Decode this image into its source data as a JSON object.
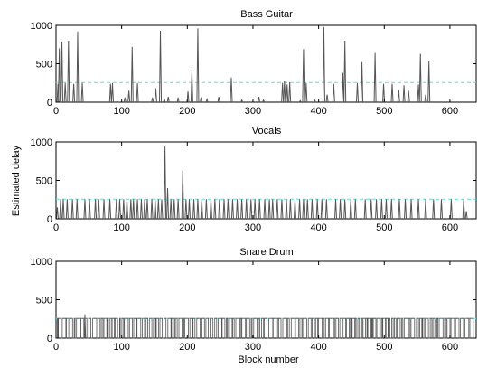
{
  "figure": {
    "ylabel": "Estimated delay",
    "xlabel": "Block number"
  },
  "chart_data": [
    {
      "type": "line",
      "title": "Bass Guitar",
      "xlim": [
        0,
        640
      ],
      "ylim": [
        0,
        1000
      ],
      "x_ticks": [
        0,
        100,
        200,
        300,
        400,
        500,
        600
      ],
      "y_ticks": [
        0,
        500,
        1000
      ],
      "reference_level": 256,
      "grid": false,
      "series_color": "#555555",
      "reference_color": "#66dddd",
      "spikes": [
        [
          3,
          240
        ],
        [
          5,
          700
        ],
        [
          9,
          790
        ],
        [
          14,
          250
        ],
        [
          19,
          800
        ],
        [
          27,
          240
        ],
        [
          33,
          920
        ],
        [
          40,
          250
        ],
        [
          83,
          240
        ],
        [
          86,
          250
        ],
        [
          105,
          60
        ],
        [
          111,
          150
        ],
        [
          116,
          720
        ],
        [
          124,
          250
        ],
        [
          147,
          60
        ],
        [
          152,
          180
        ],
        [
          159,
          930
        ],
        [
          165,
          40
        ],
        [
          171,
          70
        ],
        [
          186,
          60
        ],
        [
          201,
          140
        ],
        [
          207,
          400
        ],
        [
          216,
          960
        ],
        [
          221,
          60
        ],
        [
          230,
          40
        ],
        [
          248,
          70
        ],
        [
          267,
          320
        ],
        [
          283,
          30
        ],
        [
          309,
          70
        ],
        [
          316,
          30
        ],
        [
          345,
          250
        ],
        [
          348,
          270
        ],
        [
          352,
          230
        ],
        [
          356,
          260
        ],
        [
          372,
          20
        ],
        [
          377,
          690
        ],
        [
          381,
          250
        ],
        [
          394,
          30
        ],
        [
          408,
          980
        ],
        [
          413,
          100
        ],
        [
          423,
          240
        ],
        [
          437,
          380
        ],
        [
          440,
          800
        ],
        [
          459,
          250
        ],
        [
          466,
          520
        ],
        [
          486,
          640
        ],
        [
          499,
          240
        ],
        [
          512,
          240
        ],
        [
          522,
          160
        ],
        [
          530,
          220
        ],
        [
          537,
          150
        ],
        [
          552,
          230
        ],
        [
          555,
          630
        ],
        [
          563,
          100
        ],
        [
          568,
          530
        ]
      ]
    },
    {
      "type": "line",
      "title": "Vocals",
      "xlim": [
        0,
        640
      ],
      "ylim": [
        0,
        1000
      ],
      "x_ticks": [
        0,
        100,
        200,
        300,
        400,
        500,
        600
      ],
      "y_ticks": [
        0,
        500,
        1000
      ],
      "reference_level": 256,
      "grid": false,
      "series_color": "#555555",
      "reference_color": "#66dddd",
      "spikes": [
        [
          2,
          150
        ],
        [
          7,
          256
        ],
        [
          11,
          256
        ],
        [
          17,
          256
        ],
        [
          25,
          256
        ],
        [
          32,
          256
        ],
        [
          44,
          256
        ],
        [
          51,
          256
        ],
        [
          60,
          256
        ],
        [
          65,
          256
        ],
        [
          73,
          256
        ],
        [
          82,
          256
        ],
        [
          92,
          256
        ],
        [
          97,
          256
        ],
        [
          103,
          256
        ],
        [
          108,
          256
        ],
        [
          114,
          256
        ],
        [
          118,
          256
        ],
        [
          124,
          256
        ],
        [
          130,
          256
        ],
        [
          135,
          256
        ],
        [
          139,
          256
        ],
        [
          146,
          256
        ],
        [
          151,
          256
        ],
        [
          156,
          256
        ],
        [
          161,
          256
        ],
        [
          166,
          940
        ],
        [
          170,
          400
        ],
        [
          175,
          256
        ],
        [
          180,
          256
        ],
        [
          186,
          256
        ],
        [
          193,
          630
        ],
        [
          198,
          256
        ],
        [
          203,
          256
        ],
        [
          210,
          256
        ],
        [
          216,
          256
        ],
        [
          222,
          256
        ],
        [
          229,
          256
        ],
        [
          236,
          256
        ],
        [
          242,
          256
        ],
        [
          249,
          256
        ],
        [
          256,
          256
        ],
        [
          262,
          256
        ],
        [
          269,
          256
        ],
        [
          276,
          256
        ],
        [
          283,
          256
        ],
        [
          290,
          256
        ],
        [
          297,
          256
        ],
        [
          303,
          256
        ],
        [
          310,
          256
        ],
        [
          318,
          256
        ],
        [
          325,
          256
        ],
        [
          330,
          256
        ],
        [
          337,
          256
        ],
        [
          344,
          256
        ],
        [
          351,
          256
        ],
        [
          357,
          256
        ],
        [
          364,
          256
        ],
        [
          371,
          256
        ],
        [
          377,
          256
        ],
        [
          383,
          256
        ],
        [
          390,
          256
        ],
        [
          398,
          256
        ],
        [
          405,
          256
        ],
        [
          412,
          256
        ],
        [
          426,
          256
        ],
        [
          433,
          256
        ],
        [
          440,
          256
        ],
        [
          449,
          256
        ],
        [
          456,
          256
        ],
        [
          471,
          256
        ],
        [
          480,
          256
        ],
        [
          488,
          256
        ],
        [
          496,
          256
        ],
        [
          503,
          256
        ],
        [
          511,
          256
        ],
        [
          523,
          256
        ],
        [
          532,
          256
        ],
        [
          541,
          256
        ],
        [
          552,
          256
        ],
        [
          563,
          256
        ],
        [
          575,
          256
        ],
        [
          587,
          256
        ],
        [
          602,
          256
        ],
        [
          621,
          256
        ],
        [
          625,
          100
        ]
      ]
    },
    {
      "type": "line",
      "title": "Snare Drum",
      "xlim": [
        0,
        640
      ],
      "ylim": [
        0,
        1000
      ],
      "x_ticks": [
        0,
        100,
        200,
        300,
        400,
        500,
        600
      ],
      "y_ticks": [
        0,
        500,
        1000
      ],
      "reference_level": 256,
      "grid": false,
      "series_color": "#555555",
      "reference_color": "#66dddd",
      "dense_pulses": {
        "level": 256,
        "x_start": 2,
        "x_end": 636,
        "mean_spacing": 4.2,
        "peak": [
          44,
          310
        ]
      }
    }
  ]
}
